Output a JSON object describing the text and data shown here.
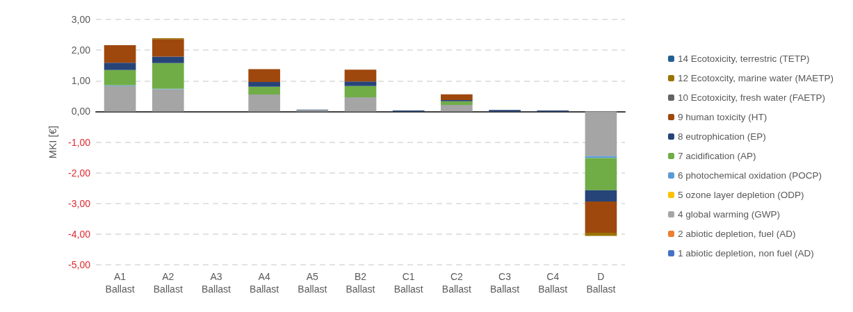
{
  "chart_data": {
    "type": "bar",
    "stacked": true,
    "ylabel": "MKI [€]",
    "categories": [
      "A1 Ballast",
      "A2 Ballast",
      "A3 Ballast",
      "A4 Ballast",
      "A5 Ballast",
      "B2 Ballast",
      "C1 Ballast",
      "C2 Ballast",
      "C3 Ballast",
      "C4 Ballast",
      "D Ballast"
    ],
    "ylim": [
      -5,
      3
    ],
    "yticks": [
      {
        "value": -5,
        "label": "-5,00"
      },
      {
        "value": -4,
        "label": "-4,00"
      },
      {
        "value": -3,
        "label": "-3,00"
      },
      {
        "value": -2,
        "label": "-2,00"
      },
      {
        "value": -1,
        "label": "-1,00"
      },
      {
        "value": 0,
        "label": "0,00"
      },
      {
        "value": 1,
        "label": "1,00"
      },
      {
        "value": 2,
        "label": "2,00"
      },
      {
        "value": 3,
        "label": "3,00"
      }
    ],
    "grid": "y",
    "legend": "right",
    "series": [
      {
        "name": "1 abiotic depletion, non fuel (AD)",
        "color": "#4472c4",
        "values": [
          0,
          0,
          0,
          0,
          0,
          0,
          0,
          0,
          0,
          0,
          0
        ]
      },
      {
        "name": "2 abiotic depletion, fuel (AD)",
        "color": "#ed7d31",
        "values": [
          0,
          0,
          0,
          0,
          0,
          0,
          0,
          0,
          0,
          0,
          0
        ]
      },
      {
        "name": "4 global warming (GWP)",
        "color": "#a5a5a5",
        "values": [
          0.83,
          0.72,
          0,
          0.55,
          0.04,
          0.46,
          0,
          0.21,
          0,
          0,
          -1.46
        ]
      },
      {
        "name": "5 ozone layer depletion (ODP)",
        "color": "#ffc000",
        "values": [
          0,
          0,
          0,
          0,
          0,
          0,
          0,
          0,
          0,
          0,
          0
        ]
      },
      {
        "name": "6 photochemical oxidation (POCP)",
        "color": "#5b9bd5",
        "values": [
          0.02,
          0.02,
          0,
          0,
          0,
          0,
          0,
          0,
          0,
          0,
          -0.06
        ]
      },
      {
        "name": "7 acidification (AP)",
        "color": "#70ad47",
        "values": [
          0.5,
          0.84,
          0,
          0.26,
          0,
          0.37,
          0,
          0.12,
          0,
          0,
          -1.05
        ]
      },
      {
        "name": "8 eutrophication (EP)",
        "color": "#264478",
        "values": [
          0.24,
          0.21,
          0,
          0.15,
          0.02,
          0.15,
          0.03,
          0.04,
          0.05,
          0.03,
          -0.37
        ]
      },
      {
        "name": "9 human toxicity (HT)",
        "color": "#9e480e",
        "values": [
          0.57,
          0.57,
          0,
          0.42,
          0,
          0.38,
          0,
          0.19,
          0,
          0,
          -1.02
        ]
      },
      {
        "name": "10 Ecotoxicity, fresh water (FAETP)",
        "color": "#636363",
        "values": [
          0,
          0,
          0,
          0,
          0,
          0,
          0,
          0,
          0,
          0,
          0
        ]
      },
      {
        "name": "12 Ecotoxcity, marine water (MAETP)",
        "color": "#997300",
        "values": [
          0,
          0.03,
          0,
          0,
          0,
          0,
          0,
          0,
          0,
          0,
          -0.1
        ]
      },
      {
        "name": "14 Ecotoxicity, terrestric (TETP)",
        "color": "#255e91",
        "values": [
          0,
          0,
          0,
          0,
          0,
          0,
          0,
          0,
          0,
          0,
          0
        ]
      }
    ]
  }
}
